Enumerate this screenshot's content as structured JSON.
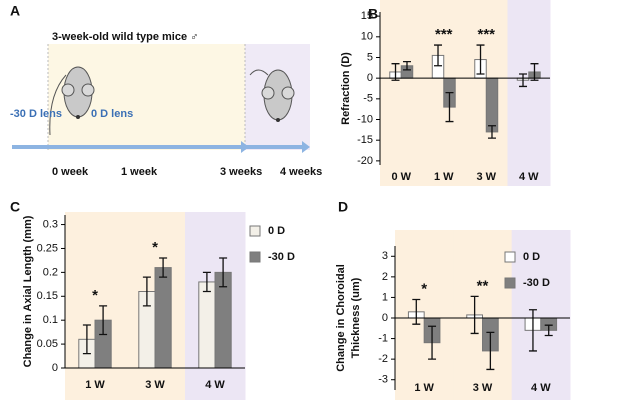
{
  "panel_a": {
    "label": "A",
    "title": "3-week-old  wild type mice ♂",
    "lens_left": "-30 D lens",
    "lens_right": "0 D lens",
    "timeline": [
      "0 week",
      "1 week",
      "3 weeks",
      "4 weeks"
    ]
  },
  "chart_data": [
    {
      "type": "bar",
      "panel_label": "B",
      "ylabel": [
        "Refraction (D)"
      ],
      "categories": [
        "0 W",
        "1 W",
        "3 W",
        "4 W"
      ],
      "background_colors": [
        "#fdf0de",
        "#fdf0de",
        "#fdf0de",
        "#ece6f4"
      ],
      "series": [
        {
          "color": "#ffffff",
          "values": [
            1.5,
            5.5,
            4.5,
            -0.5
          ],
          "errors": [
            2,
            2.5,
            3.5,
            1.5
          ]
        },
        {
          "color": "#7f7f7f",
          "values": [
            3,
            -7,
            -13,
            1.5
          ],
          "errors": [
            1,
            3.5,
            1.5,
            2
          ]
        }
      ],
      "annotations": [
        null,
        "***",
        "***",
        null
      ],
      "ylim": [
        -21,
        16
      ],
      "yticks": [
        -20,
        -15,
        -10,
        -5,
        0,
        5,
        10,
        15
      ],
      "legend": false
    },
    {
      "type": "bar",
      "panel_label": "C",
      "ylabel": [
        "Change in Axial Length (mm)"
      ],
      "categories": [
        "1 W",
        "3 W",
        "4 W"
      ],
      "background_colors": [
        "#fdf0de",
        "#fdf0de",
        "#ece6f4"
      ],
      "series": [
        {
          "name": "0 D",
          "color": "#f3f0e8",
          "values": [
            0.06,
            0.16,
            0.18
          ],
          "errors": [
            0.03,
            0.03,
            0.02
          ]
        },
        {
          "name": "-30 D",
          "color": "#7f7f7f",
          "values": [
            0.1,
            0.21,
            0.2
          ],
          "errors": [
            0.03,
            0.02,
            0.03
          ]
        }
      ],
      "annotations": [
        "*",
        "*",
        null
      ],
      "ylim": [
        0,
        0.32
      ],
      "yticks": [
        0,
        0.05,
        0.1,
        0.15,
        0.2,
        0.25,
        0.3
      ],
      "legend": true
    },
    {
      "type": "bar",
      "panel_label": "D",
      "ylabel": [
        "Change in Choroidal",
        "Thickness (um)"
      ],
      "categories": [
        "1 W",
        "3 W",
        "4 W"
      ],
      "background_colors": [
        "#fdf0de",
        "#fdf0de",
        "#ece6f4"
      ],
      "series": [
        {
          "name": "0 D",
          "color": "#ffffff",
          "values": [
            0.3,
            0.15,
            -0.6
          ],
          "errors": [
            0.6,
            0.9,
            1.0
          ]
        },
        {
          "name": "-30 D",
          "color": "#7f7f7f",
          "values": [
            -1.2,
            -1.6,
            -0.6
          ],
          "errors": [
            0.8,
            0.9,
            0.25
          ]
        }
      ],
      "annotations": [
        "*",
        "**",
        null
      ],
      "ylim": [
        -3.5,
        3.5
      ],
      "yticks": [
        -3,
        -2,
        -1,
        0,
        1,
        2,
        3
      ],
      "legend": true
    }
  ]
}
